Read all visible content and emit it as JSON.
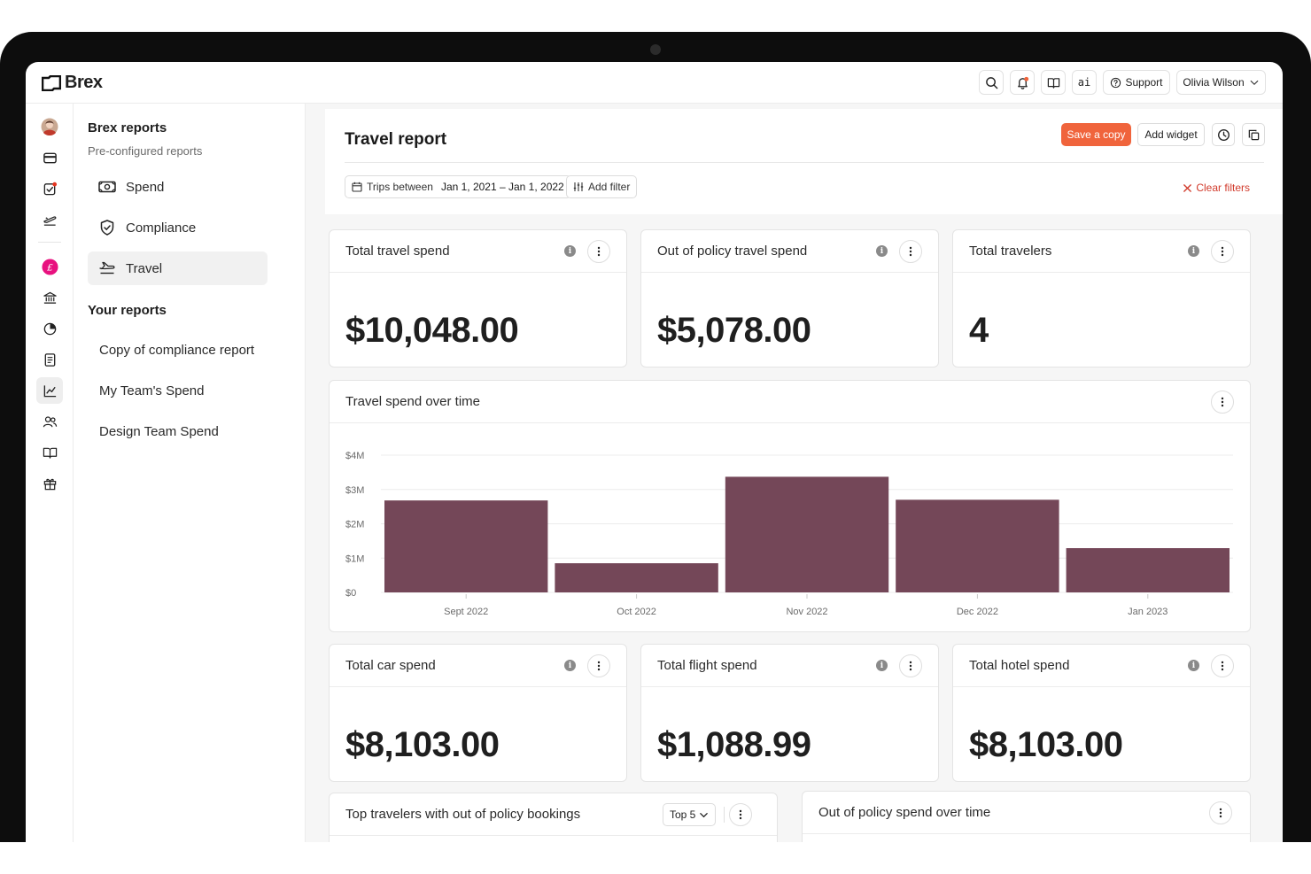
{
  "app": {
    "brand": "Brex"
  },
  "topbar": {
    "ai_label": "ai",
    "support_label": "Support",
    "user_name": "Olivia Wilson"
  },
  "rail": {
    "items": [
      "avatar",
      "card-icon",
      "task-check-icon",
      "travel-icon",
      "accounting-icon",
      "bank-icon",
      "budget-pie-icon",
      "document-icon",
      "reports-chart-icon",
      "team-icon",
      "guide-book-icon",
      "gift-icon"
    ],
    "active": "reports-chart-icon"
  },
  "subnav": {
    "section1_title": "Brex reports",
    "section1_subtitle": "Pre-configured reports",
    "preconfigured": [
      {
        "label": "Spend",
        "icon": "money-icon"
      },
      {
        "label": "Compliance",
        "icon": "shield-check-icon"
      },
      {
        "label": "Travel",
        "icon": "plane-icon",
        "active": true
      }
    ],
    "section2_title": "Your reports",
    "custom": [
      {
        "label": "Copy of compliance report"
      },
      {
        "label": "My Team's Spend"
      },
      {
        "label": "Design Team Spend"
      }
    ]
  },
  "report": {
    "title": "Travel report",
    "save_copy_label": "Save a copy",
    "add_widget_label": "Add widget",
    "filter_prefix": "Trips between",
    "filter_value": "Jan 1, 2021 – Jan 1, 2022",
    "add_filter_label": "Add filter",
    "clear_filters_label": "Clear filters"
  },
  "metrics_top": [
    {
      "title": "Total travel spend",
      "value": "$10,048.00"
    },
    {
      "title": "Out of policy travel spend",
      "value": "$5,078.00"
    },
    {
      "title": "Total travelers",
      "value": "4"
    }
  ],
  "metrics_bottom": [
    {
      "title": "Total car spend",
      "value": "$8,103.00"
    },
    {
      "title": "Total flight spend",
      "value": "$1,088.99"
    },
    {
      "title": "Total hotel spend",
      "value": "$8,103.00"
    }
  ],
  "chart_card": {
    "title": "Travel spend over time"
  },
  "chart_data": {
    "type": "bar",
    "title": "Travel spend over time",
    "x_tick_labels": [
      "Sept 2022",
      "Oct 2022",
      "Nov 2022",
      "Dec 2022",
      "Jan 2023"
    ],
    "y_tick_labels": [
      "$0",
      "$1M",
      "$2M",
      "$3M",
      "$4M"
    ],
    "ylim": [
      0,
      4000000
    ],
    "values": [
      2680000,
      850000,
      3370000,
      2700000,
      1290000
    ],
    "bar_color": "#744758",
    "grid": true,
    "legend": "none"
  },
  "bottom_cards": {
    "top_travelers_title": "Top travelers with out of policy bookings",
    "top_select_value": "Top 5",
    "oop_over_time_title": "Out of policy spend over time"
  },
  "colors": {
    "accent": "#f0643c",
    "bar": "#744758",
    "danger": "#d13a2b"
  }
}
